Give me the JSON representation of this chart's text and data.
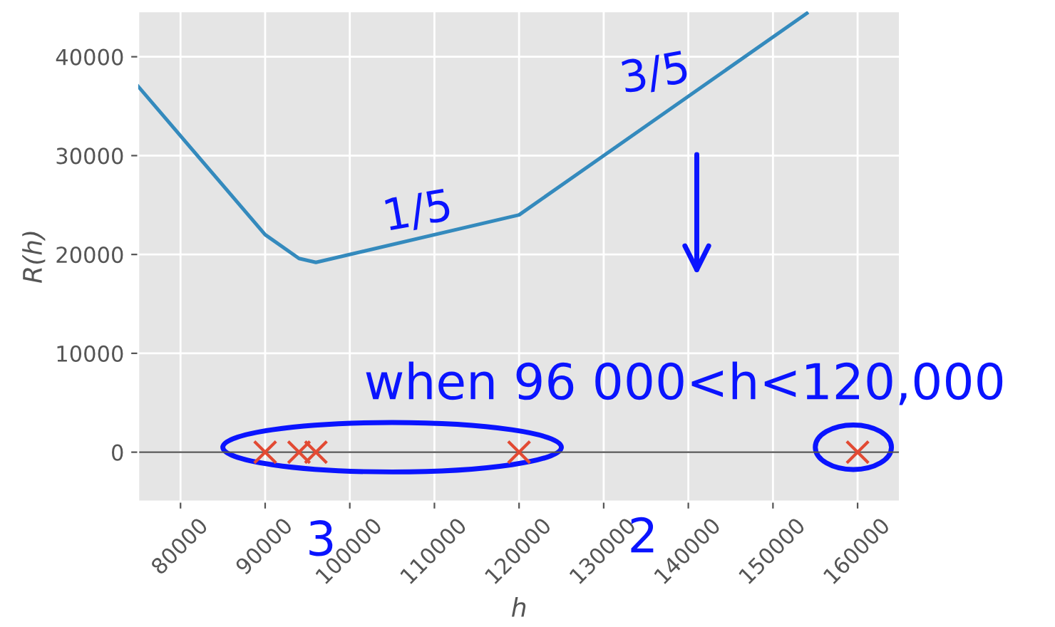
{
  "chart_data": {
    "type": "line",
    "xlabel": "h",
    "ylabel": "R(h)",
    "xlim": [
      75000,
      165000
    ],
    "ylim": [
      -5000,
      44600
    ],
    "xticks": [
      80000,
      90000,
      100000,
      110000,
      120000,
      130000,
      140000,
      150000,
      160000
    ],
    "yticks": [
      0,
      10000,
      20000,
      30000,
      40000
    ],
    "grid": true,
    "series": [
      {
        "color": "#348abd",
        "x": [
          75000,
          90000,
          94000,
          96000,
          120000,
          154000
        ],
        "values": [
          37000,
          22000,
          19600,
          19200,
          24000,
          44400
        ],
        "marker": "none"
      },
      {
        "type": "scatter",
        "color": "#e24a33",
        "x": [
          90000,
          94000,
          96000,
          120000,
          160000
        ],
        "values": [
          0,
          0,
          0,
          0,
          0
        ],
        "marker": "cross"
      }
    ],
    "ref_lines": [
      {
        "axis": "y",
        "value": 0,
        "color": "#555555"
      }
    ],
    "annotations": [
      "1/5",
      "3/5",
      "when 96 000<h<120,000",
      "3",
      "2"
    ]
  }
}
